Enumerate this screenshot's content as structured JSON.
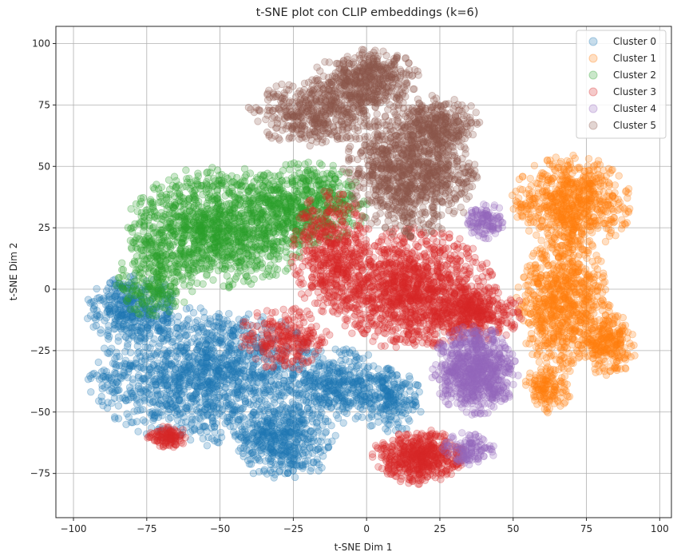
{
  "chart_data": {
    "type": "scatter",
    "title": "t-SNE plot con CLIP embeddings (k=6)",
    "xlabel": "t-SNE Dim 1",
    "ylabel": "t-SNE Dim 2",
    "xlim": [
      -106,
      104
    ],
    "ylim": [
      -93,
      107
    ],
    "xticks": [
      -100,
      -75,
      -50,
      -25,
      0,
      25,
      50,
      75,
      100
    ],
    "yticks": [
      -75,
      -50,
      -25,
      0,
      25,
      50,
      75,
      100
    ],
    "grid": true,
    "legend_position": "top-right",
    "point_alpha": 0.25,
    "series": [
      {
        "name": "Cluster 0",
        "color": "#1f77b4",
        "regions": [
          {
            "cx": -55,
            "cy": -35,
            "rx": 35,
            "ry": 25,
            "n": 1400
          },
          {
            "cx": -80,
            "cy": -8,
            "rx": 14,
            "ry": 12,
            "n": 350
          },
          {
            "cx": -28,
            "cy": -62,
            "rx": 16,
            "ry": 14,
            "n": 450
          },
          {
            "cx": -10,
            "cy": -40,
            "rx": 18,
            "ry": 14,
            "n": 400
          },
          {
            "cx": 8,
            "cy": -45,
            "rx": 10,
            "ry": 12,
            "n": 200
          }
        ]
      },
      {
        "name": "Cluster 1",
        "color": "#ff7f0e",
        "regions": [
          {
            "cx": 70,
            "cy": 35,
            "rx": 18,
            "ry": 17,
            "n": 700
          },
          {
            "cx": 67,
            "cy": -5,
            "rx": 14,
            "ry": 25,
            "n": 800
          },
          {
            "cx": 82,
            "cy": -22,
            "rx": 9,
            "ry": 12,
            "n": 250
          },
          {
            "cx": 62,
            "cy": -40,
            "rx": 7,
            "ry": 9,
            "n": 150
          }
        ]
      },
      {
        "name": "Cluster 2",
        "color": "#2ca02c",
        "regions": [
          {
            "cx": -50,
            "cy": 25,
            "rx": 28,
            "ry": 22,
            "n": 1300
          },
          {
            "cx": -20,
            "cy": 35,
            "rx": 18,
            "ry": 15,
            "n": 500
          },
          {
            "cx": -72,
            "cy": 5,
            "rx": 12,
            "ry": 15,
            "n": 250
          }
        ]
      },
      {
        "name": "Cluster 3",
        "color": "#d62728",
        "regions": [
          {
            "cx": 15,
            "cy": 0,
            "rx": 25,
            "ry": 22,
            "n": 1300
          },
          {
            "cx": -12,
            "cy": 15,
            "rx": 12,
            "ry": 22,
            "n": 500
          },
          {
            "cx": 18,
            "cy": -68,
            "rx": 14,
            "ry": 10,
            "n": 550
          },
          {
            "cx": 38,
            "cy": -10,
            "rx": 14,
            "ry": 10,
            "n": 350
          },
          {
            "cx": -68,
            "cy": -60,
            "rx": 6,
            "ry": 4,
            "n": 120
          },
          {
            "cx": -28,
            "cy": -20,
            "rx": 14,
            "ry": 12,
            "n": 250
          }
        ]
      },
      {
        "name": "Cluster 4",
        "color": "#9467bd",
        "regions": [
          {
            "cx": 37,
            "cy": -33,
            "rx": 13,
            "ry": 16,
            "n": 800
          },
          {
            "cx": 40,
            "cy": 28,
            "rx": 6,
            "ry": 7,
            "n": 120
          },
          {
            "cx": 35,
            "cy": -65,
            "rx": 8,
            "ry": 6,
            "n": 120
          }
        ]
      },
      {
        "name": "Cluster 5",
        "color": "#8c564b",
        "regions": [
          {
            "cx": 15,
            "cy": 48,
            "rx": 20,
            "ry": 24,
            "n": 1100
          },
          {
            "cx": 0,
            "cy": 85,
            "rx": 16,
            "ry": 12,
            "n": 500
          },
          {
            "cx": -18,
            "cy": 72,
            "rx": 20,
            "ry": 12,
            "n": 450
          },
          {
            "cx": 25,
            "cy": 68,
            "rx": 12,
            "ry": 10,
            "n": 250
          }
        ]
      }
    ]
  }
}
